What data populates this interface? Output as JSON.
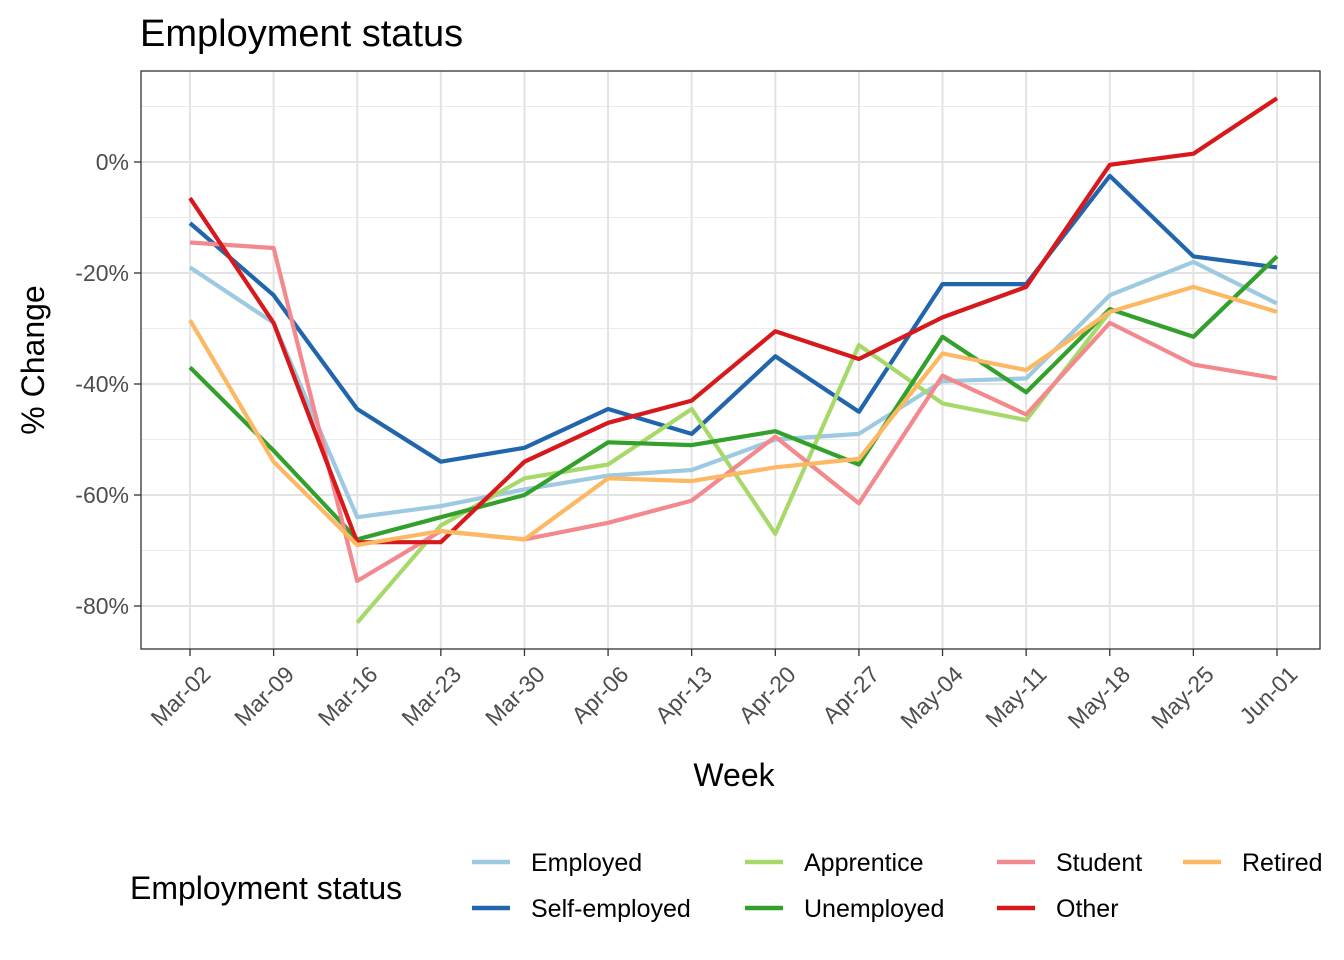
{
  "chart_data": {
    "type": "line",
    "title": "Employment status",
    "xlabel": "Week",
    "ylabel": "% Change",
    "categories": [
      "Mar-02",
      "Mar-09",
      "Mar-16",
      "Mar-23",
      "Mar-30",
      "Apr-06",
      "Apr-13",
      "Apr-20",
      "Apr-27",
      "May-04",
      "May-11",
      "May-18",
      "May-25",
      "Jun-01"
    ],
    "ylim": [
      -88,
      17
    ],
    "yticks": [
      0,
      -20,
      -40,
      -60,
      -80
    ],
    "ytick_labels": [
      "0%",
      "-20%",
      "-40%",
      "-60%",
      "-80%"
    ],
    "grid": true,
    "legend": {
      "title": "Employment status",
      "position": "bottom"
    },
    "series": [
      {
        "name": "Employed",
        "color": "#9ecae1",
        "values": [
          -19,
          -29,
          -64,
          -62,
          -59,
          -56.5,
          -55.5,
          -50,
          -49,
          -39.5,
          -39,
          -24,
          -18,
          -25.5
        ]
      },
      {
        "name": "Self-employed",
        "color": "#2166ac",
        "values": [
          -11,
          -24,
          -44.5,
          -54,
          -51.5,
          -44.5,
          -49,
          -35,
          -45,
          -22,
          -22,
          -2.5,
          -17,
          -19
        ]
      },
      {
        "name": "Apprentice",
        "color": "#a6d96a",
        "values": [
          null,
          null,
          -83,
          -65.5,
          -57,
          -54.5,
          -44.5,
          -67,
          -33,
          -43.5,
          -46.5,
          -27,
          null,
          null
        ]
      },
      {
        "name": "Unemployed",
        "color": "#33a02c",
        "values": [
          -37,
          -52,
          -68,
          -64,
          -60,
          -50.5,
          -51,
          -48.5,
          -54.5,
          -31.5,
          -41.5,
          -26.5,
          -31.5,
          -17
        ]
      },
      {
        "name": "Student",
        "color": "#f4898d",
        "values": [
          -14.5,
          -15.5,
          -75.5,
          -66.5,
          -68,
          -65,
          -61,
          -49.5,
          -61.5,
          -38.5,
          -45.5,
          -29,
          -36.5,
          -39
        ]
      },
      {
        "name": "Other",
        "color": "#d7191c",
        "values": [
          -6.5,
          -29,
          -68.5,
          -68.5,
          -54,
          -47,
          -43,
          -30.5,
          -35.5,
          -28,
          -22.5,
          -0.5,
          1.5,
          11.5
        ]
      },
      {
        "name": "Retired",
        "color": "#fdb863",
        "values": [
          -28.5,
          -54,
          -69,
          -66.5,
          -68,
          -57,
          -57.5,
          -55,
          -53.5,
          -34.5,
          -37.5,
          -27,
          -22.5,
          -27
        ]
      }
    ]
  }
}
